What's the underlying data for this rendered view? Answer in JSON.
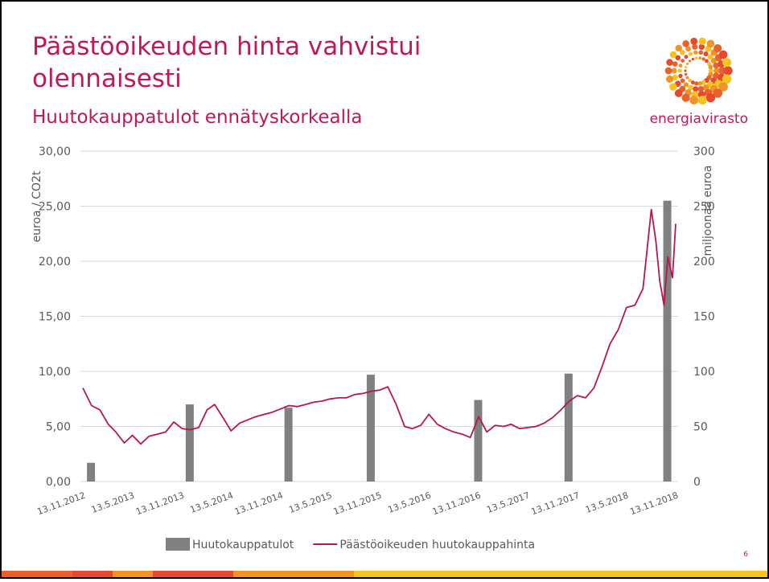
{
  "header": {
    "title_line1": "Päästöoikeuden hinta vahvistui",
    "title_line2": "olennaisesti",
    "subtitle": "Huutokauppatulot ennätyskorkealla",
    "logo_text": "energiavirasto",
    "page_number": "6"
  },
  "chart_data": {
    "type": "combo",
    "ylabel": "euroa / CO2t",
    "y2label": "miljoonaa euroa",
    "xlim": [
      "13.11.2012",
      "13.11.2018"
    ],
    "xticks": [
      "13.11.2012",
      "13.5.2013",
      "13.11.2013",
      "13.5.2014",
      "13.11.2014",
      "13.5.2015",
      "13.11.2015",
      "13.5.2016",
      "13.11.2016",
      "13.5.2017",
      "13.11.2017",
      "13.5.2018",
      "13.11.2018"
    ],
    "ylim": [
      0,
      30
    ],
    "yticks": [
      {
        "value": 0,
        "label": "0,00"
      },
      {
        "value": 5,
        "label": "5,00"
      },
      {
        "value": 10,
        "label": "10,00"
      },
      {
        "value": 15,
        "label": "15,00"
      },
      {
        "value": 20,
        "label": "20,00"
      },
      {
        "value": 25,
        "label": "25,00"
      },
      {
        "value": 30,
        "label": "30,00"
      }
    ],
    "y2lim": [
      0,
      300
    ],
    "y2ticks": [
      0,
      50,
      100,
      150,
      200,
      250,
      300
    ],
    "grid": true,
    "legend": "bottom",
    "series": [
      {
        "name": "Huutokauppatulot",
        "type": "bar",
        "axis": "y2",
        "color": "#808080",
        "x": [
          "13.12.2012",
          "13.12.2013",
          "13.12.2014",
          "13.10.2015",
          "13.11.2016",
          "13.10.2017",
          "13.10.2018"
        ],
        "values": [
          17,
          70,
          67,
          97,
          74,
          98,
          255
        ]
      },
      {
        "name": "Päästöoikeuden huutokauppahinta",
        "type": "line",
        "axis": "y",
        "color": "#b8174f",
        "x": [
          "13.11.2012",
          "15.12.2012",
          "15.1.2013",
          "15.2.2013",
          "15.3.2013",
          "15.4.2013",
          "15.5.2013",
          "15.6.2013",
          "15.7.2013",
          "15.8.2013",
          "15.9.2013",
          "15.10.2013",
          "15.11.2013",
          "15.12.2013",
          "15.1.2014",
          "15.2.2014",
          "15.3.2014",
          "15.4.2014",
          "15.5.2014",
          "15.6.2014",
          "15.7.2014",
          "15.8.2014",
          "15.9.2014",
          "15.10.2014",
          "15.11.2014",
          "15.12.2014",
          "15.1.2015",
          "15.2.2015",
          "15.3.2015",
          "15.4.2015",
          "15.5.2015",
          "15.6.2015",
          "15.7.2015",
          "15.8.2015",
          "15.9.2015",
          "15.10.2015",
          "15.11.2015",
          "15.12.2015",
          "15.1.2016",
          "15.2.2016",
          "15.3.2016",
          "15.4.2016",
          "15.5.2016",
          "15.6.2016",
          "15.7.2016",
          "15.8.2016",
          "15.9.2016",
          "15.10.2016",
          "15.11.2016",
          "15.12.2016",
          "15.1.2017",
          "15.2.2017",
          "15.3.2017",
          "15.4.2017",
          "15.5.2017",
          "15.6.2017",
          "15.7.2017",
          "15.8.2017",
          "15.9.2017",
          "15.10.2017",
          "15.11.2017",
          "15.12.2017",
          "15.1.2018",
          "15.2.2018",
          "15.3.2018",
          "15.4.2018",
          "15.5.2018",
          "15.6.2018",
          "15.7.2018",
          "15.8.2018",
          "1.9.2018",
          "15.9.2018",
          "1.10.2018",
          "15.10.2018",
          "1.11.2018",
          "13.11.2018"
        ],
        "values": [
          8.5,
          6.9,
          6.5,
          5.2,
          4.5,
          3.5,
          4.2,
          3.4,
          4.1,
          4.3,
          4.5,
          5.4,
          4.8,
          4.7,
          4.9,
          6.5,
          7.0,
          5.8,
          4.6,
          5.3,
          5.6,
          5.9,
          6.1,
          6.3,
          6.6,
          6.9,
          6.8,
          7.0,
          7.2,
          7.3,
          7.5,
          7.6,
          7.6,
          7.9,
          8.0,
          8.2,
          8.3,
          8.6,
          7.0,
          5.0,
          4.8,
          5.1,
          6.1,
          5.2,
          4.8,
          4.5,
          4.3,
          4.0,
          5.9,
          4.5,
          5.1,
          5.0,
          5.2,
          4.8,
          4.9,
          5.0,
          5.3,
          5.8,
          6.5,
          7.3,
          7.8,
          7.6,
          8.5,
          10.5,
          12.5,
          13.8,
          15.8,
          16.0,
          17.5,
          24.7,
          21.8,
          18.2,
          16.0,
          20.4,
          18.5,
          23.4
        ]
      }
    ]
  }
}
